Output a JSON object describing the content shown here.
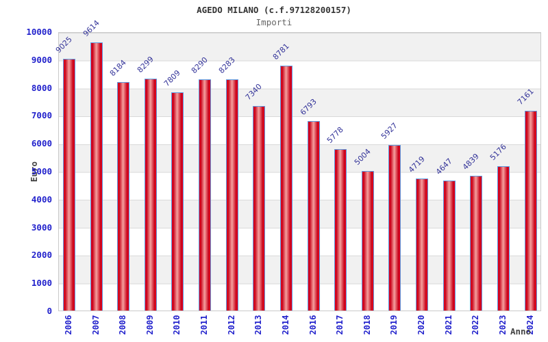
{
  "header": {
    "title": "AGEDO MILANO (c.f.97128200157)",
    "subtitle": "Importi"
  },
  "chart_data": {
    "type": "bar",
    "title": "AGEDO MILANO (c.f.97128200157)",
    "subtitle": "Importi",
    "categories": [
      "2006",
      "2007",
      "2008",
      "2009",
      "2010",
      "2011",
      "2012",
      "2013",
      "2014",
      "2016",
      "2017",
      "2018",
      "2019",
      "2020",
      "2021",
      "2022",
      "2023",
      "2024"
    ],
    "values": [
      9025,
      9614,
      8184,
      8299,
      7809,
      8290,
      8283,
      7340,
      8781,
      6793,
      5778,
      5004,
      5927,
      4719,
      4647,
      4839,
      5176,
      7161
    ],
    "xlabel": "Anno",
    "ylabel": "Euro",
    "ylim": [
      0,
      10000
    ],
    "ytick_step": 1000,
    "grid": true,
    "legend": null,
    "plot_bands_alternating": true
  },
  "colors": {
    "bar_fill_edge": "#ea0020",
    "bar_fill_center": "#f5a09e",
    "bar_border": "#5b9ae0",
    "axis_tick_text": "#2222cc",
    "value_label_text": "#333399",
    "title_text": "#333333",
    "subtitle_text": "#666666",
    "axis_title_text": "#444444",
    "band_gray": "#f1f1f1",
    "gridline": "#d9d9d9"
  }
}
